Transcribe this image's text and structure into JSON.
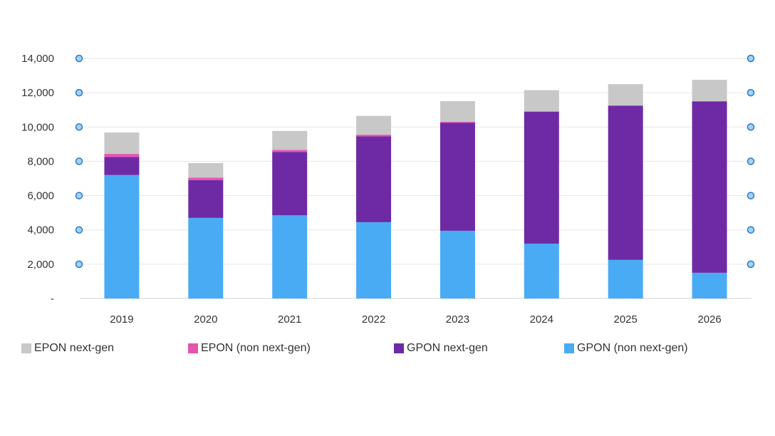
{
  "chart_data": {
    "type": "bar",
    "stacked": true,
    "title": "",
    "xlabel": "",
    "ylabel": "",
    "ylim": [
      0,
      14000
    ],
    "y_ticks": [
      0,
      2000,
      4000,
      6000,
      8000,
      10000,
      12000,
      14000
    ],
    "y_tick_labels": [
      "-",
      "2,000",
      "4,000",
      "6,000",
      "8,000",
      "10,000",
      "12,000",
      "14,000"
    ],
    "grid": true,
    "legend_position": "bottom",
    "categories": [
      "2019",
      "2020",
      "2021",
      "2022",
      "2023",
      "2024",
      "2025",
      "2026"
    ],
    "series": [
      {
        "name": "GPON (non next-gen)",
        "color": "#4aabf5",
        "values": [
          7200,
          4700,
          4850,
          4450,
          3950,
          3200,
          2250,
          1500
        ]
      },
      {
        "name": "GPON next-gen",
        "color": "#6e2aa5",
        "values": [
          1050,
          2200,
          3700,
          5000,
          6300,
          7700,
          9000,
          10000
        ]
      },
      {
        "name": "EPON (non next-gen)",
        "color": "#e454b0",
        "values": [
          180,
          150,
          120,
          100,
          60,
          0,
          0,
          0
        ]
      },
      {
        "name": "EPON next-gen",
        "color": "#c8c8c8",
        "values": [
          1250,
          850,
          1100,
          1100,
          1200,
          1250,
          1250,
          1250
        ]
      }
    ],
    "legend_order": [
      3,
      2,
      1,
      0
    ]
  }
}
